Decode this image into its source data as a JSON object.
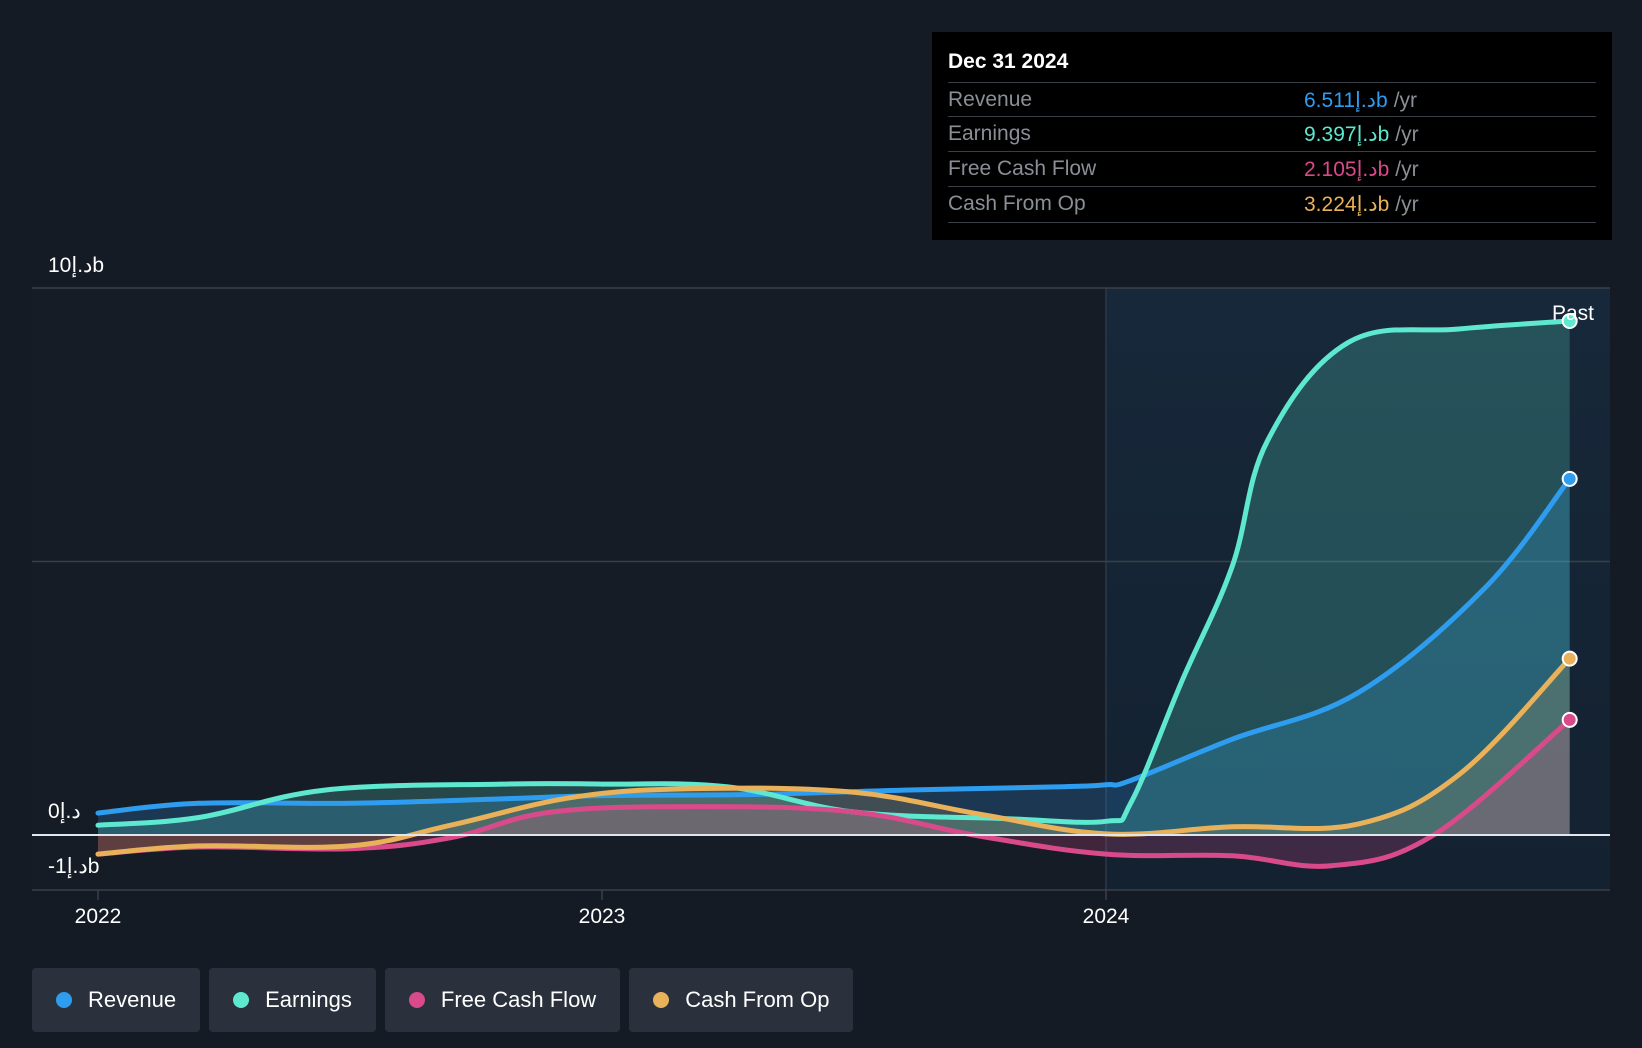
{
  "chart_data": {
    "type": "line",
    "currency_unit": "د.إb",
    "x_ticks": [
      "2022",
      "2023",
      "2024"
    ],
    "y_ticks": [
      {
        "value": 10,
        "label": "10د.إb"
      },
      {
        "value": 0,
        "label": "0د.إ"
      },
      {
        "value": -1,
        "label": "-1د.إb"
      }
    ],
    "ylim": [
      -1,
      10
    ],
    "xlim": [
      2021.93,
      2024.92
    ],
    "past_label": "Past",
    "past_start": 2024.0,
    "colors": {
      "revenue": "#2e9df0",
      "earnings": "#5ee8d0",
      "fcf": "#d94a8b",
      "cfo": "#e8b15a",
      "grid": "#3a404a",
      "zero": "#ffffff"
    },
    "series": [
      {
        "key": "revenue",
        "name": "Revenue",
        "color": "#2e9df0",
        "x": [
          2022.0,
          2022.2,
          2022.5,
          2022.8,
          2023.0,
          2023.3,
          2023.6,
          2023.9,
          2024.0,
          2024.05,
          2024.25,
          2024.5,
          2024.75,
          2024.92
        ],
        "y": [
          0.4,
          0.58,
          0.58,
          0.66,
          0.72,
          0.74,
          0.82,
          0.88,
          0.92,
          1.0,
          1.75,
          2.6,
          4.5,
          6.511
        ]
      },
      {
        "key": "earnings",
        "name": "Earnings",
        "color": "#5ee8d0",
        "x": [
          2022.0,
          2022.2,
          2022.45,
          2022.8,
          2023.0,
          2023.25,
          2023.5,
          2023.8,
          2024.0,
          2024.05,
          2024.15,
          2024.25,
          2024.32,
          2024.48,
          2024.7,
          2024.92
        ],
        "y": [
          0.18,
          0.32,
          0.82,
          0.93,
          0.93,
          0.88,
          0.42,
          0.3,
          0.25,
          0.6,
          2.8,
          4.9,
          7.2,
          9.0,
          9.25,
          9.397
        ]
      },
      {
        "key": "fcf",
        "name": "Free Cash Flow",
        "color": "#d94a8b",
        "x": [
          2022.0,
          2022.2,
          2022.5,
          2022.7,
          2022.9,
          2023.2,
          2023.5,
          2023.75,
          2024.0,
          2024.25,
          2024.45,
          2024.65,
          2024.92
        ],
        "y": [
          -0.35,
          -0.22,
          -0.25,
          -0.05,
          0.42,
          0.52,
          0.42,
          -0.02,
          -0.35,
          -0.38,
          -0.56,
          0.0,
          2.105
        ]
      },
      {
        "key": "cfo",
        "name": "Cash From Op",
        "color": "#e8b15a",
        "x": [
          2022.0,
          2022.2,
          2022.5,
          2022.7,
          2022.95,
          2023.2,
          2023.5,
          2023.75,
          2024.0,
          2024.25,
          2024.5,
          2024.7,
          2024.92
        ],
        "y": [
          -0.35,
          -0.2,
          -0.2,
          0.18,
          0.7,
          0.85,
          0.78,
          0.38,
          0.02,
          0.15,
          0.2,
          1.1,
          3.224
        ]
      }
    ]
  },
  "tooltip": {
    "date": "Dec 31 2024",
    "unit": "/yr",
    "rows": [
      {
        "label": "Revenue",
        "value": "6.511د.إb",
        "color": "#2e9df0"
      },
      {
        "label": "Earnings",
        "value": "9.397د.إb",
        "color": "#5ee8d0"
      },
      {
        "label": "Free Cash Flow",
        "value": "2.105د.إb",
        "color": "#d94a8b"
      },
      {
        "label": "Cash From Op",
        "value": "3.224د.إb",
        "color": "#e8b15a"
      }
    ]
  },
  "legend": [
    {
      "label": "Revenue",
      "color": "#2e9df0"
    },
    {
      "label": "Earnings",
      "color": "#5ee8d0"
    },
    {
      "label": "Free Cash Flow",
      "color": "#d94a8b"
    },
    {
      "label": "Cash From Op",
      "color": "#e8b15a"
    }
  ]
}
